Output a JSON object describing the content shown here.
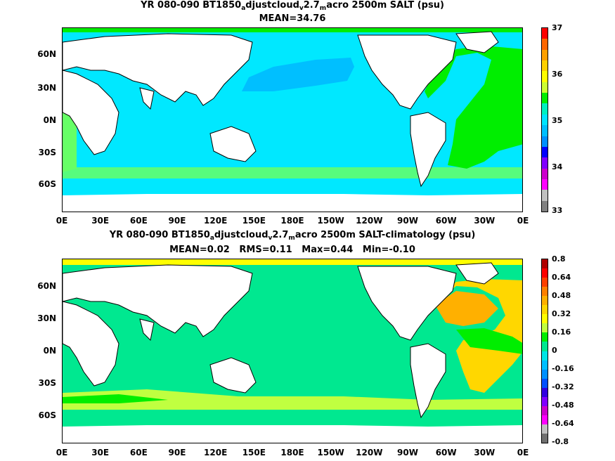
{
  "maps": [
    {
      "title_parts": [
        "YR 080-090 BT1850",
        "a",
        "djustcloud",
        "v",
        "2.7",
        "m",
        "acro 2500m SALT (psu)"
      ],
      "stats": "MEAN=34.76",
      "colorbar_labels": [
        "37",
        "36",
        "35",
        "34",
        "33"
      ],
      "colorbar_colors": [
        "#ff0000",
        "#ff6600",
        "#ffa000",
        "#ffd000",
        "#ffff00",
        "#ccff33",
        "#00ee00",
        "#00f0c0",
        "#00e5ff",
        "#00bfff",
        "#0090ff",
        "#0000ff",
        "#8000ff",
        "#cc00cc",
        "#ff00ff",
        "#c0c0c0",
        "#808080"
      ]
    },
    {
      "title_parts": [
        "YR 080-090 BT1850",
        "a",
        "djustcloud",
        "v",
        "2.7",
        "m",
        "acro 2500m SALT-climatology (psu)"
      ],
      "stats": "MEAN=0.02   RMS=0.11   Max=0.44   Min=-0.10",
      "colorbar_labels": [
        "0.8",
        "0.64",
        "0.48",
        "0.32",
        "0.16",
        "0",
        "-0.16",
        "-0.32",
        "-0.48",
        "-0.64",
        "-0.8"
      ],
      "colorbar_colors": [
        "#b00000",
        "#ff0000",
        "#ff4000",
        "#ff8000",
        "#ffb000",
        "#ffd700",
        "#ffff00",
        "#c0ff40",
        "#00ee00",
        "#00e890",
        "#00e5e5",
        "#00bfff",
        "#0090ff",
        "#0050ff",
        "#3000e0",
        "#8000ff",
        "#cc00cc",
        "#ff00ff",
        "#c0c0c0",
        "#707070"
      ]
    }
  ],
  "y_ticks": [
    "60N",
    "30N",
    "0N",
    "30S",
    "60S"
  ],
  "x_ticks": [
    "0E",
    "30E",
    "60E",
    "90E",
    "120E",
    "150E",
    "180E",
    "150W",
    "120W",
    "90W",
    "60W",
    "30W",
    "0E"
  ],
  "colors": {
    "land": "#ffffff",
    "coast": "#000000",
    "map1_ocean": "#00e8ff",
    "map1_npac": "#00bfff",
    "map1_atl": "#00ee00",
    "map1_atl_light": "#66ff66",
    "map2_ocean": "#00e890",
    "map2_green": "#00ee00",
    "map2_yellow": "#ffd700",
    "map2_orange": "#ffb000"
  }
}
